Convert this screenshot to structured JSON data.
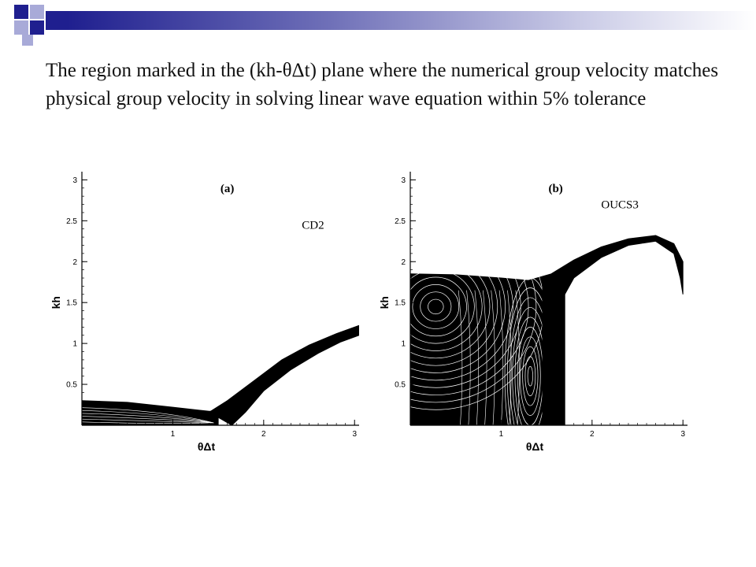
{
  "title": "The region marked in the (kh-θΔt) plane where the numerical group velocity matches physical group velocity in solving linear wave equation within 5% tolerance",
  "colors": {
    "bar_dark": "#1f1f8f",
    "bar_light": "#ffffff",
    "square_dark": "#1f1f8f",
    "square_light": "#a8aad8",
    "ink": "#000000"
  },
  "chart_data": [
    {
      "type": "contour",
      "panel_label": "(a)",
      "annotation": "CD2",
      "xlabel": "θΔt",
      "ylabel": "kh",
      "xlim": [
        0,
        3.05
      ],
      "ylim": [
        0,
        3.1
      ],
      "xticks": [
        "1",
        "2",
        "3"
      ],
      "yticks": [
        "0.5",
        "1",
        "1.5",
        "2",
        "2.5",
        "3"
      ],
      "bands": [
        {
          "name": "low-kh band",
          "upper": [
            [
              0,
              0.3
            ],
            [
              0.5,
              0.28
            ],
            [
              1.0,
              0.22
            ],
            [
              1.4,
              0.17
            ],
            [
              1.5,
              0.17
            ]
          ],
          "lower": [
            [
              0,
              0
            ],
            [
              1.5,
              0
            ]
          ]
        },
        {
          "name": "rising band",
          "upper": [
            [
              1.4,
              0.16
            ],
            [
              1.6,
              0.3
            ],
            [
              1.9,
              0.55
            ],
            [
              2.2,
              0.8
            ],
            [
              2.5,
              0.98
            ],
            [
              2.8,
              1.12
            ],
            [
              3.05,
              1.22
            ]
          ],
          "lower": [
            [
              1.65,
              0
            ],
            [
              1.8,
              0.16
            ],
            [
              2.0,
              0.42
            ],
            [
              2.3,
              0.68
            ],
            [
              2.6,
              0.88
            ],
            [
              2.85,
              1.02
            ],
            [
              3.05,
              1.1
            ]
          ]
        }
      ]
    },
    {
      "type": "contour",
      "panel_label": "(b)",
      "annotation": "OUCS3",
      "xlabel": "θΔt",
      "ylabel": "kh",
      "xlim": [
        0,
        3.05
      ],
      "ylim": [
        0,
        3.1
      ],
      "xticks": [
        "1",
        "2",
        "3"
      ],
      "yticks": [
        "0.5",
        "1",
        "1.5",
        "2",
        "2.5",
        "3"
      ],
      "bands": [
        {
          "name": "left region",
          "upper": [
            [
              0,
              1.85
            ],
            [
              0.5,
              1.84
            ],
            [
              1.0,
              1.8
            ],
            [
              1.3,
              1.77
            ],
            [
              1.45,
              1.78
            ]
          ],
          "lower": [
            [
              0,
              0
            ],
            [
              1.45,
              0
            ]
          ]
        },
        {
          "name": "vertical band",
          "upper": [
            [
              1.3,
              1.72
            ],
            [
              1.7,
              1.72
            ]
          ],
          "lower": [
            [
              1.3,
              0
            ],
            [
              1.7,
              0
            ]
          ]
        },
        {
          "name": "arch",
          "upper": [
            [
              1.3,
              1.77
            ],
            [
              1.55,
              1.85
            ],
            [
              1.8,
              2.02
            ],
            [
              2.1,
              2.18
            ],
            [
              2.4,
              2.28
            ],
            [
              2.7,
              2.32
            ],
            [
              2.9,
              2.22
            ],
            [
              3.0,
              2.0
            ]
          ],
          "lower": [
            [
              1.7,
              1.6
            ],
            [
              1.8,
              1.8
            ],
            [
              2.1,
              2.05
            ],
            [
              2.4,
              2.2
            ],
            [
              2.7,
              2.25
            ],
            [
              2.9,
              2.1
            ],
            [
              2.97,
              1.8
            ],
            [
              3.0,
              1.6
            ]
          ]
        }
      ],
      "ellipse_centers": [
        [
          0.28,
          1.45
        ],
        [
          1.32,
          0.6
        ]
      ]
    }
  ]
}
